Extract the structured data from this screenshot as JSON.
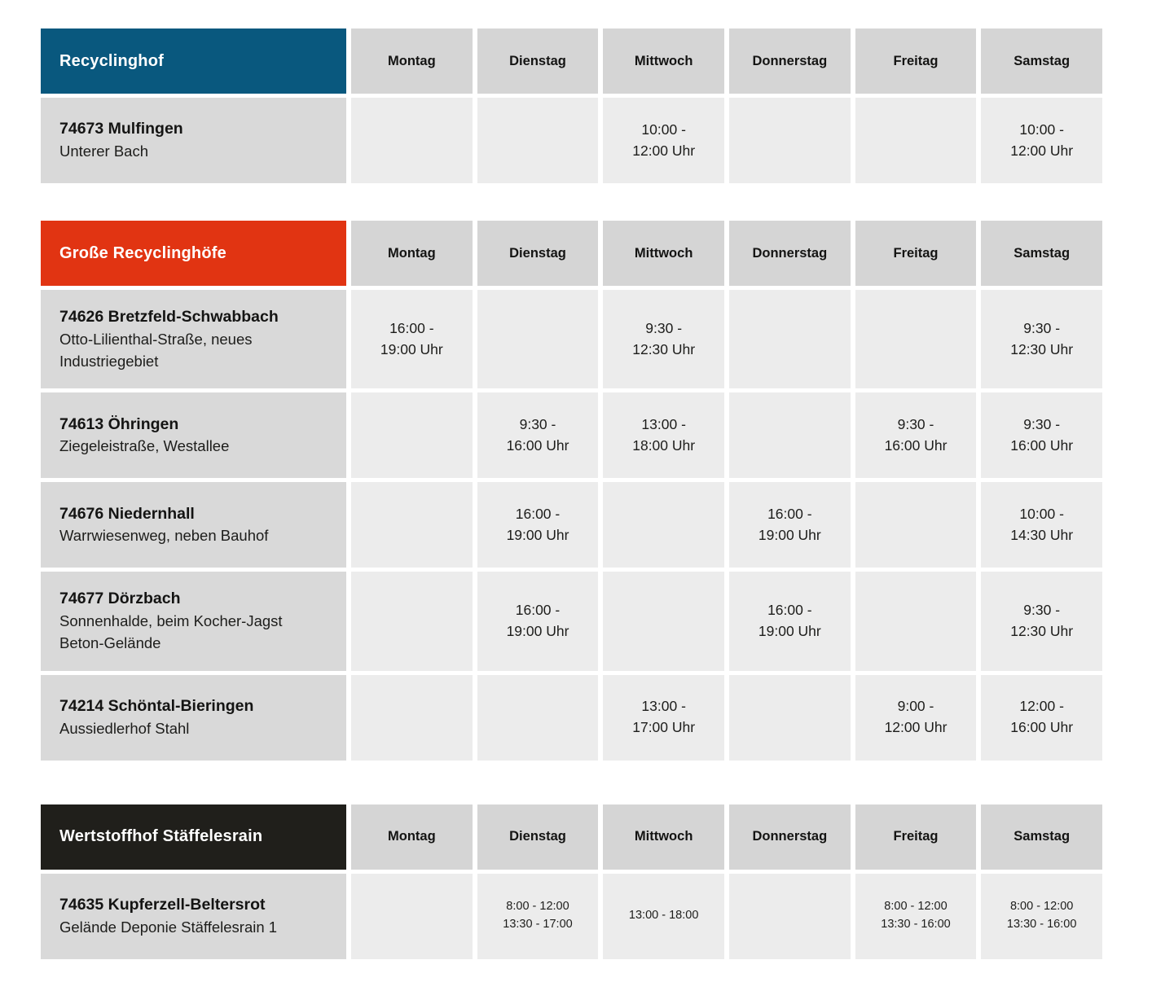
{
  "days": [
    "Montag",
    "Dienstag",
    "Mittwoch",
    "Donnerstag",
    "Freitag",
    "Samstag"
  ],
  "colors": {
    "recyclinghof_header": "#09587e",
    "grosse_recyclinghoefe_header": "#e13412",
    "wertstoffhof_header": "#201f1b",
    "day_header_bg": "#d5d5d5",
    "location_cell_bg": "#d9d9d9",
    "hours_cell_bg": "#ececec",
    "header_text": "#ffffff",
    "body_text": "#1d1d1b"
  },
  "tables": [
    {
      "title": "Recyclinghof",
      "header_bg": "#09587e",
      "time_size": "normal",
      "rows": [
        {
          "name": "74673 Mulfingen",
          "address": "Unterer Bach",
          "hours": [
            [],
            [],
            [
              "10:00 -",
              "12:00 Uhr"
            ],
            [],
            [],
            [
              "10:00 -",
              "12:00 Uhr"
            ]
          ]
        }
      ]
    },
    {
      "title": "Große Recyclinghöfe",
      "header_bg": "#e13412",
      "time_size": "normal",
      "rows": [
        {
          "name": "74626 Bretzfeld-Schwabbach",
          "address": "Otto-Lilienthal-Straße, neues Industriegebiet",
          "hours": [
            [
              "16:00 -",
              "19:00 Uhr"
            ],
            [],
            [
              "9:30 -",
              "12:30 Uhr"
            ],
            [],
            [],
            [
              "9:30 -",
              "12:30 Uhr"
            ]
          ]
        },
        {
          "name": "74613 Öhringen",
          "address": "Ziegeleistraße, Westallee",
          "hours": [
            [],
            [
              "9:30 -",
              "16:00 Uhr"
            ],
            [
              "13:00 -",
              "18:00 Uhr"
            ],
            [],
            [
              "9:30 -",
              "16:00 Uhr"
            ],
            [
              "9:30 -",
              "16:00 Uhr"
            ]
          ]
        },
        {
          "name": "74676 Niedernhall",
          "address": "Warrwiesenweg, neben Bauhof",
          "hours": [
            [],
            [
              "16:00 -",
              "19:00 Uhr"
            ],
            [],
            [
              "16:00 -",
              "19:00 Uhr"
            ],
            [],
            [
              "10:00 -",
              "14:30 Uhr"
            ]
          ]
        },
        {
          "name": "74677 Dörzbach",
          "address": "Sonnenhalde, beim Kocher-Jagst Beton-Gelände",
          "hours": [
            [],
            [
              "16:00 -",
              "19:00 Uhr"
            ],
            [],
            [
              "16:00 -",
              "19:00 Uhr"
            ],
            [],
            [
              "9:30 -",
              "12:30 Uhr"
            ]
          ]
        },
        {
          "name": "74214 Schöntal-Bieringen",
          "address": "Aussiedlerhof Stahl",
          "hours": [
            [],
            [],
            [
              "13:00 -",
              "17:00 Uhr"
            ],
            [],
            [
              "9:00 -",
              "12:00 Uhr"
            ],
            [
              "12:00 -",
              "16:00 Uhr"
            ]
          ]
        }
      ]
    },
    {
      "title": "Wertstoffhof Stäffelesrain",
      "header_bg": "#201f1b",
      "time_size": "small",
      "rows": [
        {
          "name": "74635 Kupferzell-Beltersrot",
          "address": "Gelände Deponie Stäffelesrain 1",
          "hours": [
            [],
            [
              "8:00 - 12:00",
              "13:30 - 17:00"
            ],
            [
              "13:00 - 18:00"
            ],
            [],
            [
              "8:00 - 12:00",
              "13:30 - 16:00"
            ],
            [
              "8:00 - 12:00",
              "13:30 - 16:00"
            ]
          ]
        }
      ]
    }
  ]
}
